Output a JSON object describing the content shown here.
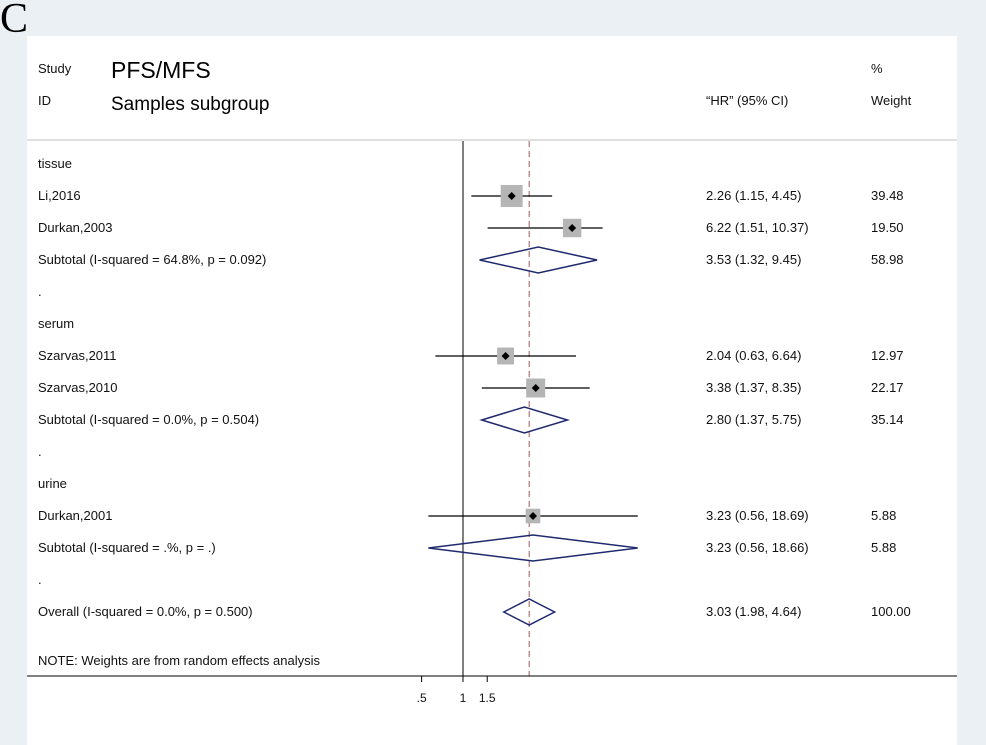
{
  "panel_label": "C",
  "header": {
    "study_label": "Study",
    "id_label": "ID",
    "title": "PFS/MFS",
    "subtitle": "Samples subgroup",
    "hr_header": "“HR” (95% CI)",
    "pct_label": "%",
    "weight_label": "Weight"
  },
  "note": "NOTE: Weights are from random effects analysis",
  "chart_data": {
    "type": "forest",
    "measure": "HR",
    "null_line": 1,
    "overall_line": 3.03,
    "x_ticks": [
      {
        "value": 0.5,
        "label": ".5"
      },
      {
        "value": 1,
        "label": "1"
      },
      {
        "value": 1.5,
        "label": "1.5"
      }
    ],
    "rows": [
      {
        "kind": "group",
        "label": "tissue"
      },
      {
        "kind": "study",
        "label": "Li,2016",
        "hr": 2.26,
        "lo": 1.15,
        "hi": 4.45,
        "ci_text": "2.26 (1.15, 4.45)",
        "weight": 39.48,
        "weight_text": "39.48"
      },
      {
        "kind": "study",
        "label": "Durkan,2003",
        "hr": 6.22,
        "lo": 1.51,
        "hi": 10.37,
        "ci_text": "6.22 (1.51, 10.37)",
        "weight": 19.5,
        "weight_text": "19.50"
      },
      {
        "kind": "subtotal",
        "label": "Subtotal  (I-squared = 64.8%, p = 0.092)",
        "hr": 3.53,
        "lo": 1.32,
        "hi": 9.45,
        "ci_text": "3.53 (1.32, 9.45)",
        "weight": 58.98,
        "weight_text": "58.98"
      },
      {
        "kind": "spacer",
        "label": "."
      },
      {
        "kind": "group",
        "label": "serum"
      },
      {
        "kind": "study",
        "label": "Szarvas,2011",
        "hr": 2.04,
        "lo": 0.63,
        "hi": 6.64,
        "ci_text": "2.04 (0.63, 6.64)",
        "weight": 12.97,
        "weight_text": "12.97"
      },
      {
        "kind": "study",
        "label": "Szarvas,2010",
        "hr": 3.38,
        "lo": 1.37,
        "hi": 8.35,
        "ci_text": "3.38 (1.37, 8.35)",
        "weight": 22.17,
        "weight_text": "22.17"
      },
      {
        "kind": "subtotal",
        "label": "Subtotal  (I-squared = 0.0%, p = 0.504)",
        "hr": 2.8,
        "lo": 1.37,
        "hi": 5.75,
        "ci_text": "2.80 (1.37, 5.75)",
        "weight": 35.14,
        "weight_text": "35.14"
      },
      {
        "kind": "spacer",
        "label": "."
      },
      {
        "kind": "group",
        "label": "urine"
      },
      {
        "kind": "study",
        "label": "Durkan,2001",
        "hr": 3.23,
        "lo": 0.56,
        "hi": 18.69,
        "ci_text": "3.23 (0.56, 18.69)",
        "weight": 5.88,
        "weight_text": "5.88"
      },
      {
        "kind": "subtotal",
        "label": "Subtotal  (I-squared = .%, p = .)",
        "hr": 3.23,
        "lo": 0.56,
        "hi": 18.66,
        "ci_text": "3.23 (0.56, 18.66)",
        "weight": 5.88,
        "weight_text": "5.88"
      },
      {
        "kind": "spacer",
        "label": "."
      },
      {
        "kind": "overall",
        "label": "Overall  (I-squared = 0.0%, p = 0.500)",
        "hr": 3.03,
        "lo": 1.98,
        "hi": 4.64,
        "ci_text": "3.03 (1.98, 4.64)",
        "weight": 100,
        "weight_text": "100.00"
      }
    ]
  }
}
